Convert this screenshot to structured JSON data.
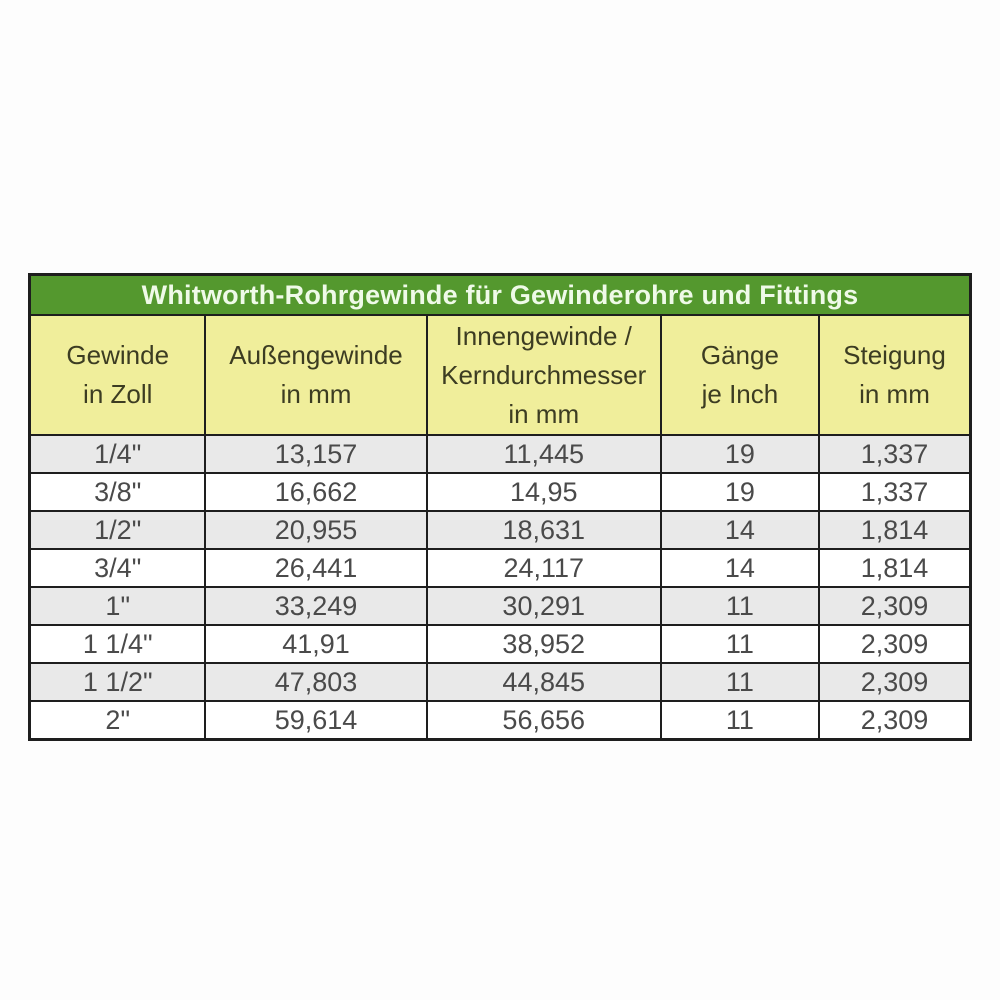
{
  "title": "Whitworth-Rohrgewinde für Gewinderohre und Fittings",
  "colors": {
    "header_green": "#54982e",
    "header_yellow": "#f0ee9b",
    "row_gray": "#e9e9e9",
    "row_white": "#ffffff",
    "border": "#1e1e1e",
    "title_text": "#effae8",
    "header_text": "#3c3c22",
    "cell_text": "#4a4a4a"
  },
  "table": {
    "columns": [
      "Gewinde\nin Zoll",
      "Außengewinde\nin mm",
      "Innengewinde /\nKerndurchmesser\nin mm",
      "Gänge\nje Inch",
      "Steigung\nin mm"
    ],
    "rows": [
      [
        "1/4\"",
        "13,157",
        "11,445",
        "19",
        "1,337"
      ],
      [
        "3/8\"",
        "16,662",
        "14,95",
        "19",
        "1,337"
      ],
      [
        "1/2\"",
        "20,955",
        "18,631",
        "14",
        "1,814"
      ],
      [
        "3/4\"",
        "26,441",
        "24,117",
        "14",
        "1,814"
      ],
      [
        "1\"",
        "33,249",
        "30,291",
        "11",
        "2,309"
      ],
      [
        "1 1/4\"",
        "41,91",
        "38,952",
        "11",
        "2,309"
      ],
      [
        "1 1/2\"",
        "47,803",
        "44,845",
        "11",
        "2,309"
      ],
      [
        "2\"",
        "59,614",
        "56,656",
        "11",
        "2,309"
      ]
    ]
  },
  "chart_data": {
    "type": "table",
    "title": "Whitworth-Rohrgewinde für Gewinderohre und Fittings",
    "columns": [
      "Gewinde in Zoll",
      "Außengewinde in mm",
      "Innengewinde / Kerndurchmesser in mm",
      "Gänge je Inch",
      "Steigung in mm"
    ],
    "rows": [
      [
        "1/4\"",
        "13,157",
        "11,445",
        "19",
        "1,337"
      ],
      [
        "3/8\"",
        "16,662",
        "14,95",
        "19",
        "1,337"
      ],
      [
        "1/2\"",
        "20,955",
        "18,631",
        "14",
        "1,814"
      ],
      [
        "3/4\"",
        "26,441",
        "24,117",
        "14",
        "1,814"
      ],
      [
        "1\"",
        "33,249",
        "30,291",
        "11",
        "2,309"
      ],
      [
        "1 1/4\"",
        "41,91",
        "38,952",
        "11",
        "2,309"
      ],
      [
        "1 1/2\"",
        "47,803",
        "44,845",
        "11",
        "2,309"
      ],
      [
        "2\"",
        "59,614",
        "56,656",
        "11",
        "2,309"
      ]
    ],
    "layout": {
      "row_striping": "odd rows light gray, even rows white",
      "header_style": "green title bar above yellow column-header row",
      "grid": true
    }
  }
}
